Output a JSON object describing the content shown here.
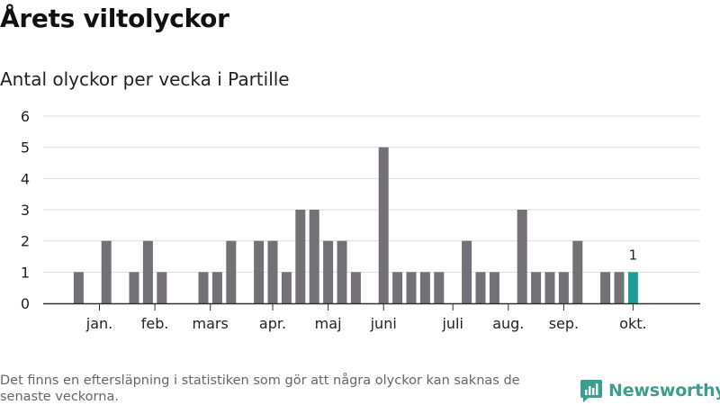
{
  "title": "Årets viltolyckor",
  "subtitle": "Antal olyckor per vecka i Partille",
  "footnote": "Det finns en eftersläpning i statistiken som gör att några olyckor kan saknas de senaste veckorna.",
  "brand": {
    "name": "Newsworthy",
    "icon": "newsworthy-logo-icon"
  },
  "colors": {
    "bar": "#737176",
    "highlight": "#1a9e96",
    "grid": "#dddddd",
    "axis": "#333333"
  },
  "chart_data": {
    "type": "bar",
    "title": "Antal olyckor per vecka i Partille",
    "xlabel": "",
    "ylabel": "",
    "ylim": [
      0,
      6
    ],
    "yticks": [
      "0",
      "1",
      "2",
      "3",
      "4",
      "5",
      "6"
    ],
    "values": [
      0,
      1,
      0,
      2,
      0,
      1,
      2,
      1,
      0,
      0,
      1,
      1,
      2,
      0,
      2,
      2,
      1,
      3,
      3,
      2,
      2,
      1,
      0,
      5,
      1,
      1,
      1,
      1,
      0,
      2,
      1,
      1,
      0,
      3,
      1,
      1,
      1,
      2,
      0,
      1,
      1,
      1
    ],
    "highlight_index": 41,
    "highlight_label": "1",
    "month_labels": [
      {
        "label": "jan.",
        "week": 2.5
      },
      {
        "label": "feb.",
        "week": 6.5
      },
      {
        "label": "mars",
        "week": 10.5
      },
      {
        "label": "apr.",
        "week": 15
      },
      {
        "label": "maj",
        "week": 19
      },
      {
        "label": "juni",
        "week": 23
      },
      {
        "label": "juli",
        "week": 28
      },
      {
        "label": "aug.",
        "week": 32
      },
      {
        "label": "sep.",
        "week": 36
      },
      {
        "label": "okt.",
        "week": 41
      }
    ]
  }
}
